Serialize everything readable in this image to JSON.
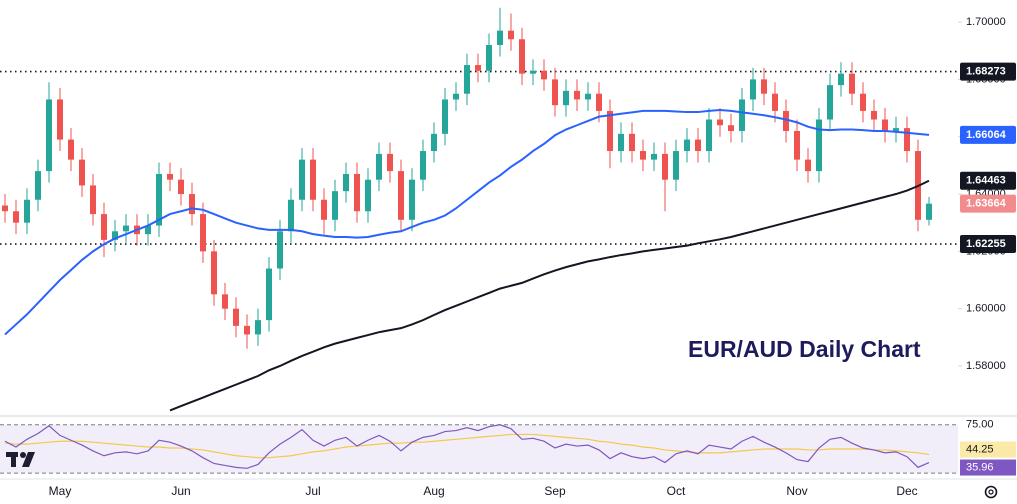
{
  "chart_data": {
    "type": "candlestick",
    "annotation": "EUR/AUD Daily Chart",
    "categories": [
      null,
      null,
      null,
      null,
      null,
      "May",
      null,
      null,
      null,
      null,
      null,
      null,
      null,
      null,
      null,
      null,
      "Jun",
      null,
      null,
      null,
      null,
      null,
      null,
      null,
      null,
      null,
      null,
      null,
      "Jul",
      null,
      null,
      null,
      null,
      null,
      null,
      null,
      null,
      null,
      null,
      "Aug",
      null,
      null,
      null,
      null,
      null,
      null,
      null,
      null,
      null,
      null,
      "Sep",
      null,
      null,
      null,
      null,
      null,
      null,
      null,
      null,
      null,
      null,
      "Oct",
      null,
      null,
      null,
      null,
      null,
      null,
      null,
      null,
      null,
      null,
      "Nov",
      null,
      null,
      null,
      null,
      null,
      null,
      null,
      null,
      null,
      "Dec",
      null,
      null
    ],
    "open": [
      1.636,
      1.634,
      1.63,
      1.638,
      1.648,
      1.673,
      1.659,
      1.652,
      1.643,
      1.633,
      1.624,
      1.627,
      1.629,
      1.626,
      1.629,
      1.647,
      1.645,
      1.64,
      1.633,
      1.62,
      1.605,
      1.6,
      1.594,
      1.591,
      1.596,
      1.614,
      1.627,
      1.638,
      1.652,
      1.638,
      1.631,
      1.641,
      1.647,
      1.634,
      1.645,
      1.654,
      1.648,
      1.631,
      1.645,
      1.655,
      1.661,
      1.673,
      1.675,
      1.685,
      1.683,
      1.692,
      1.697,
      1.694,
      1.682,
      1.683,
      1.68,
      1.671,
      1.676,
      1.673,
      1.675,
      1.669,
      1.655,
      1.661,
      1.655,
      1.652,
      1.654,
      1.645,
      1.655,
      1.659,
      1.655,
      1.666,
      1.664,
      1.662,
      1.673,
      1.68,
      1.675,
      1.669,
      1.662,
      1.652,
      1.648,
      1.666,
      1.678,
      1.682,
      1.675,
      1.669,
      1.666,
      1.662,
      1.663,
      1.655,
      1.631
    ],
    "high": [
      1.64,
      1.638,
      1.642,
      1.652,
      1.679,
      1.677,
      1.663,
      1.656,
      1.647,
      1.637,
      1.631,
      1.633,
      1.633,
      1.633,
      1.651,
      1.651,
      1.649,
      1.644,
      1.637,
      1.624,
      1.609,
      1.604,
      1.598,
      1.6,
      1.618,
      1.631,
      1.642,
      1.656,
      1.656,
      1.642,
      1.645,
      1.651,
      1.651,
      1.649,
      1.658,
      1.658,
      1.652,
      1.649,
      1.659,
      1.665,
      1.677,
      1.679,
      1.689,
      1.689,
      1.696,
      1.705,
      1.703,
      1.698,
      1.687,
      1.687,
      1.684,
      1.68,
      1.68,
      1.679,
      1.679,
      1.673,
      1.665,
      1.665,
      1.659,
      1.658,
      1.658,
      1.659,
      1.663,
      1.663,
      1.67,
      1.67,
      1.668,
      1.677,
      1.684,
      1.684,
      1.679,
      1.673,
      1.666,
      1.656,
      1.67,
      1.682,
      1.686,
      1.686,
      1.679,
      1.673,
      1.67,
      1.667,
      1.667,
      1.659,
      1.639
    ],
    "low": [
      1.63,
      1.626,
      1.626,
      1.634,
      1.644,
      1.655,
      1.648,
      1.639,
      1.629,
      1.618,
      1.62,
      1.623,
      1.622,
      1.622,
      1.625,
      1.641,
      1.636,
      1.629,
      1.616,
      1.601,
      1.596,
      1.59,
      1.586,
      1.587,
      1.592,
      1.61,
      1.623,
      1.634,
      1.634,
      1.626,
      1.627,
      1.637,
      1.63,
      1.63,
      1.641,
      1.644,
      1.627,
      1.627,
      1.641,
      1.651,
      1.657,
      1.669,
      1.671,
      1.679,
      1.679,
      1.688,
      1.69,
      1.678,
      1.678,
      1.676,
      1.667,
      1.667,
      1.669,
      1.669,
      1.665,
      1.649,
      1.651,
      1.651,
      1.648,
      1.648,
      1.634,
      1.641,
      1.651,
      1.651,
      1.651,
      1.66,
      1.658,
      1.658,
      1.669,
      1.671,
      1.665,
      1.658,
      1.648,
      1.644,
      1.644,
      1.662,
      1.674,
      1.671,
      1.665,
      1.662,
      1.658,
      1.658,
      1.651,
      1.627,
      1.629
    ],
    "close": [
      1.634,
      1.63,
      1.638,
      1.648,
      1.673,
      1.659,
      1.652,
      1.643,
      1.633,
      1.624,
      1.627,
      1.629,
      1.626,
      1.629,
      1.647,
      1.645,
      1.64,
      1.633,
      1.62,
      1.605,
      1.6,
      1.594,
      1.591,
      1.596,
      1.614,
      1.627,
      1.638,
      1.652,
      1.638,
      1.631,
      1.641,
      1.647,
      1.634,
      1.645,
      1.654,
      1.648,
      1.631,
      1.645,
      1.655,
      1.661,
      1.673,
      1.675,
      1.685,
      1.683,
      1.692,
      1.697,
      1.694,
      1.682,
      1.683,
      1.68,
      1.671,
      1.676,
      1.673,
      1.675,
      1.669,
      1.655,
      1.661,
      1.655,
      1.652,
      1.654,
      1.645,
      1.655,
      1.659,
      1.655,
      1.666,
      1.664,
      1.662,
      1.673,
      1.68,
      1.675,
      1.669,
      1.662,
      1.652,
      1.648,
      1.666,
      1.678,
      1.682,
      1.675,
      1.669,
      1.666,
      1.662,
      1.663,
      1.655,
      1.631,
      1.63664
    ],
    "up_color": "#26a69a",
    "down_color": "#ef5350",
    "last_color": "#f28b8b",
    "moving_averages": [
      {
        "color": "#2962ff",
        "values": [
          1.591,
          1.5945,
          1.598,
          1.602,
          1.606,
          1.61,
          1.6135,
          1.617,
          1.62,
          1.6225,
          1.6245,
          1.626,
          1.6275,
          1.629,
          1.631,
          1.633,
          1.634,
          1.635,
          1.6345,
          1.633,
          1.6315,
          1.63,
          1.629,
          1.628,
          1.6275,
          1.6275,
          1.6275,
          1.627,
          1.626,
          1.6255,
          1.625,
          1.625,
          1.6248,
          1.625,
          1.6258,
          1.6265,
          1.627,
          1.6285,
          1.63,
          1.631,
          1.6325,
          1.635,
          1.638,
          1.641,
          1.644,
          1.6465,
          1.6495,
          1.652,
          1.655,
          1.6575,
          1.6605,
          1.6625,
          1.664,
          1.6655,
          1.667,
          1.6675,
          1.668,
          1.6685,
          1.669,
          1.669,
          1.669,
          1.6688,
          1.6686,
          1.6686,
          1.669,
          1.6693,
          1.669,
          1.6685,
          1.668,
          1.6675,
          1.6668,
          1.666,
          1.665,
          1.6635,
          1.6625,
          1.6623,
          1.6625,
          1.6625,
          1.6623,
          1.662,
          1.662,
          1.6617,
          1.6614,
          1.661,
          1.66064
        ]
      },
      {
        "color": "#131722",
        "values": [
          null,
          null,
          null,
          null,
          null,
          null,
          null,
          null,
          null,
          null,
          null,
          null,
          null,
          null,
          null,
          1.5645,
          1.566,
          1.5675,
          1.569,
          1.5705,
          1.572,
          1.5735,
          1.575,
          1.5765,
          1.5785,
          1.58,
          1.5818,
          1.5835,
          1.585,
          1.5865,
          1.5878,
          1.5888,
          1.5898,
          1.5908,
          1.5918,
          1.5925,
          1.5932,
          1.5945,
          1.596,
          1.5978,
          1.5995,
          1.601,
          1.6025,
          1.604,
          1.6055,
          1.607,
          1.608,
          1.609,
          1.6105,
          1.612,
          1.6133,
          1.6145,
          1.6155,
          1.6165,
          1.6172,
          1.618,
          1.6187,
          1.6193,
          1.62,
          1.6205,
          1.621,
          1.6215,
          1.622,
          1.6228,
          1.6235,
          1.6242,
          1.625,
          1.626,
          1.627,
          1.628,
          1.629,
          1.63,
          1.631,
          1.632,
          1.633,
          1.634,
          1.635,
          1.636,
          1.637,
          1.638,
          1.639,
          1.64,
          1.6412,
          1.6428,
          1.64463
        ]
      }
    ],
    "levels": [
      1.68273,
      1.62255
    ],
    "level_color": "#131722",
    "ylim": [
      1.5629,
      1.7077
    ],
    "yticks": [
      {
        "value": 1.58,
        "label": "1.58000"
      },
      {
        "value": 1.6,
        "label": "1.60000"
      },
      {
        "value": 1.62,
        "label": "1.62000"
      },
      {
        "value": 1.64,
        "label": "1.64000"
      },
      {
        "value": 1.66,
        "label": "1.66000"
      },
      {
        "value": 1.68,
        "label": "1.68000"
      },
      {
        "value": 1.7,
        "label": "1.70000"
      }
    ],
    "rsi": {
      "ylim": [
        20,
        82
      ],
      "yticks": [
        {
          "value": 75,
          "label": "75.00"
        }
      ],
      "band": [
        25,
        75
      ],
      "color": "#7e57c2",
      "values": [
        58,
        52,
        60,
        66,
        74,
        64,
        59,
        54,
        48,
        43,
        46,
        47,
        45,
        48,
        59,
        57,
        53,
        48,
        41,
        35,
        33,
        31,
        30,
        34,
        46,
        55,
        62,
        70,
        59,
        53,
        59,
        62,
        53,
        59,
        64,
        58,
        48,
        57,
        62,
        64,
        68,
        69,
        72,
        69,
        73,
        75,
        71,
        60,
        61,
        58,
        51,
        55,
        53,
        54,
        49,
        40,
        46,
        42,
        40,
        42,
        36,
        45,
        48,
        45,
        54,
        52,
        50,
        58,
        63,
        57,
        52,
        46,
        39,
        37,
        51,
        60,
        62,
        56,
        51,
        49,
        46,
        47,
        42,
        31,
        35.96
      ],
      "ma_color": "#f2c94c",
      "ma_values": [
        56,
        55,
        55,
        56,
        57,
        58,
        58,
        58,
        57,
        56,
        55,
        54,
        53,
        52,
        52,
        51,
        51,
        50,
        49,
        47,
        45,
        43,
        42,
        41,
        41,
        42,
        43,
        45,
        47,
        48,
        50,
        52,
        53,
        54,
        55,
        56,
        56,
        57,
        57,
        58,
        59,
        60,
        61,
        62,
        63,
        64,
        65,
        65,
        65,
        64,
        63,
        62,
        61,
        60,
        58,
        57,
        55,
        54,
        52,
        51,
        49,
        48,
        47,
        46,
        46,
        46,
        47,
        48,
        49,
        50,
        50,
        50,
        50,
        49,
        49,
        50,
        50,
        50,
        50,
        49,
        49,
        48,
        47,
        46,
        44.25
      ]
    }
  }
}
